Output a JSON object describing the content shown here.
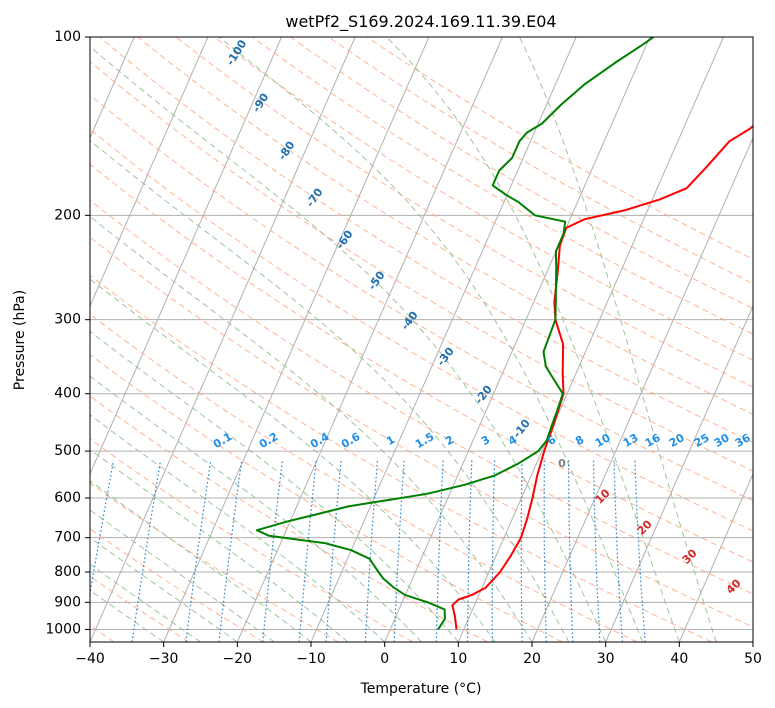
{
  "chart_data": {
    "type": "line",
    "title": "wetPf2_S169.2024.169.11.39.E04",
    "xlabel": "Temperature (°C)",
    "ylabel": "Pressure (hPa)",
    "xlim": [
      -40,
      50
    ],
    "ylim": [
      1050,
      100
    ],
    "y_scale": "log",
    "grid": true,
    "x_ticks": [
      -40,
      -30,
      -20,
      -10,
      0,
      10,
      20,
      30,
      40,
      50
    ],
    "x_tick_labels": [
      "−40",
      "−30",
      "−20",
      "−10",
      "0",
      "10",
      "20",
      "30",
      "40",
      "50"
    ],
    "y_ticks": [
      1000,
      900,
      800,
      700,
      600,
      500,
      400,
      300,
      200,
      100
    ],
    "y_tick_labels": [
      "1000",
      "900",
      "800",
      "700",
      "600",
      "500",
      "400",
      "300",
      "200",
      "100"
    ],
    "colors": {
      "temperature": "#ff0000",
      "dewpoint": "#008000",
      "isotherm": "#b0b0b0",
      "dry_adiabat": "#ffa07a",
      "moist_adiabat": "#90c090",
      "mixing_ratio": "#1e7fd0",
      "isotherm_label": "#1f6fb0",
      "dry_adiabat_label": "#d62728",
      "mixing_label": "#1e8fe8"
    },
    "series": [
      {
        "key": "temperature",
        "points": [
          [
            9,
            1000
          ],
          [
            8,
            950
          ],
          [
            7,
            910
          ],
          [
            7.5,
            890
          ],
          [
            9,
            875
          ],
          [
            10.5,
            850
          ],
          [
            11.5,
            800
          ],
          [
            12,
            750
          ],
          [
            12.3,
            700
          ],
          [
            12,
            650
          ],
          [
            11.5,
            600
          ],
          [
            10.8,
            550
          ],
          [
            10.3,
            500
          ],
          [
            10,
            450
          ],
          [
            9.5,
            400
          ],
          [
            8.2,
            370
          ],
          [
            6.5,
            330
          ],
          [
            4,
            300
          ],
          [
            2.8,
            280
          ],
          [
            1.5,
            250
          ],
          [
            0.2,
            225
          ],
          [
            0,
            210
          ],
          [
            2,
            203
          ],
          [
            7,
            196
          ],
          [
            11,
            188
          ],
          [
            14,
            180
          ],
          [
            15.5,
            165
          ],
          [
            17,
            150
          ],
          [
            19,
            143
          ],
          [
            20,
            138
          ],
          [
            21.5,
            128
          ],
          [
            23,
            118
          ],
          [
            25,
            110
          ],
          [
            27,
            103
          ],
          [
            28,
            100
          ]
        ]
      },
      {
        "key": "dewpoint",
        "points": [
          [
            6.5,
            1000
          ],
          [
            6.8,
            960
          ],
          [
            6.2,
            925
          ],
          [
            3.5,
            900
          ],
          [
            0,
            875
          ],
          [
            -2,
            850
          ],
          [
            -4,
            820
          ],
          [
            -5,
            800
          ],
          [
            -6,
            780
          ],
          [
            -7,
            760
          ],
          [
            -10,
            735
          ],
          [
            -14,
            715
          ],
          [
            -18,
            705
          ],
          [
            -22,
            695
          ],
          [
            -24,
            680
          ],
          [
            -20,
            655
          ],
          [
            -17,
            640
          ],
          [
            -13,
            620
          ],
          [
            -8,
            605
          ],
          [
            -3,
            590
          ],
          [
            1.5,
            570
          ],
          [
            5,
            550
          ],
          [
            7.5,
            525
          ],
          [
            9.5,
            500
          ],
          [
            10,
            480
          ],
          [
            9.8,
            450
          ],
          [
            9.6,
            420
          ],
          [
            9.4,
            400
          ],
          [
            7.5,
            380
          ],
          [
            5.5,
            360
          ],
          [
            4.3,
            340
          ],
          [
            4,
            300
          ],
          [
            3,
            280
          ],
          [
            1,
            245
          ],
          [
            0,
            230
          ],
          [
            0,
            215
          ],
          [
            -0.5,
            205
          ],
          [
            -5,
            200
          ],
          [
            -8,
            190
          ],
          [
            -10,
            185
          ],
          [
            -12.5,
            178
          ],
          [
            -12.5,
            168
          ],
          [
            -11.5,
            160
          ],
          [
            -11.5,
            150
          ],
          [
            -11,
            145
          ],
          [
            -9.5,
            140
          ],
          [
            -8,
            130
          ],
          [
            -6,
            120
          ],
          [
            -3,
            110
          ],
          [
            -0.5,
            103
          ],
          [
            0.5,
            100
          ]
        ]
      }
    ],
    "isotherm_labels": [
      "-100",
      "-90",
      "-80",
      "-70",
      "-60",
      "-50",
      "-40",
      "-30",
      "-20",
      "-10",
      "0"
    ],
    "mixing_ratio_labels": [
      "0.1",
      "0.2",
      "0.4",
      "0.6",
      "1",
      "1.5",
      "2",
      "3",
      "4",
      "6",
      "8",
      "10",
      "13",
      "16",
      "20",
      "25",
      "30",
      "36"
    ],
    "dry_adiabat_labels": [
      "10",
      "20",
      "30",
      "40"
    ]
  }
}
